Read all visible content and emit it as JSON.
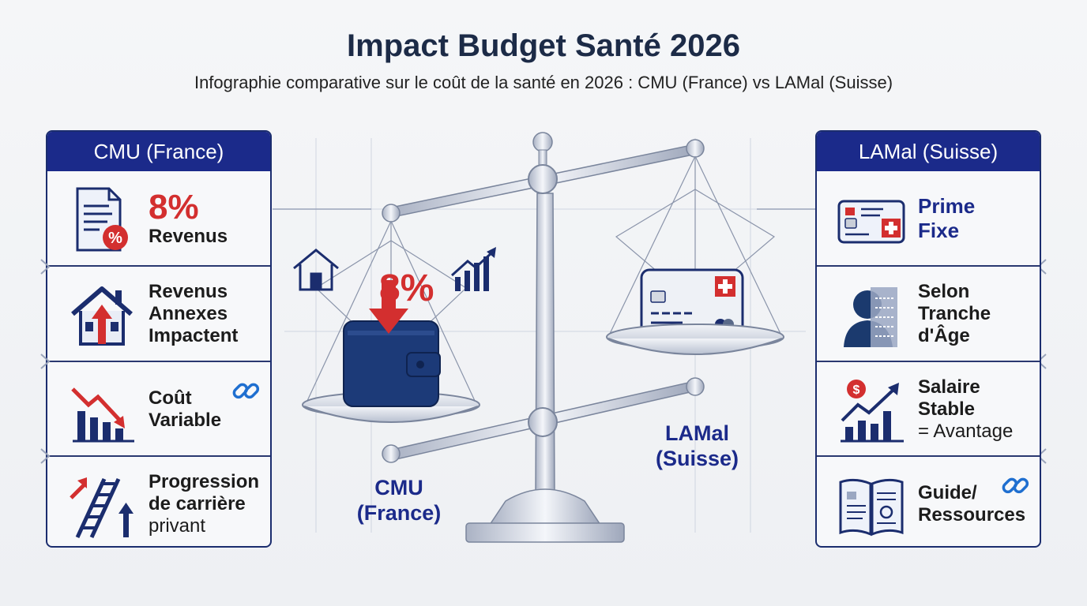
{
  "title": "Impact Budget Santé 2026",
  "subtitle": "Infographie comparative sur le coût de la santé en 2026 : CMU (France) vs LAMal (Suisse)",
  "left_panel": {
    "header": "CMU (France)",
    "rows": [
      {
        "line1": "8%",
        "line2": "Revenus",
        "icon": "document-percent-icon"
      },
      {
        "line1": "Revenus",
        "line2": "Annexes",
        "line3": "Impactent",
        "icon": "house-arrow-up-icon"
      },
      {
        "line1": "Coût",
        "line2": "Variable",
        "icon": "chart-down-icon"
      },
      {
        "line1": "Progression",
        "line2": "de carrière",
        "line3": "privant",
        "icon": "ladder-arrow-icon"
      }
    ]
  },
  "right_panel": {
    "header": "LAMal (Suisse)",
    "rows": [
      {
        "line1": "Prime",
        "line2": "Fixe",
        "icon": "swiss-card-icon"
      },
      {
        "line1": "Selon",
        "line2": "Tranche",
        "line3": "d'Âge",
        "icon": "aging-profile-icon"
      },
      {
        "line1": "Salaire",
        "line2": "Stable",
        "line3": "= Avantage",
        "icon": "salary-growth-icon"
      },
      {
        "line1": "Guide/",
        "line2": "Ressources",
        "icon": "open-book-icon"
      }
    ]
  },
  "scale": {
    "left_pan_label_1": "CMU",
    "left_pan_label_2": "(France)",
    "right_pan_label_1": "LAMal",
    "right_pan_label_2": "(Suisse)",
    "left_pan_value": "8%"
  },
  "colors": {
    "navy": "#1b2a8a",
    "red": "#d32f2f",
    "dark_blue": "#1c2b47"
  }
}
